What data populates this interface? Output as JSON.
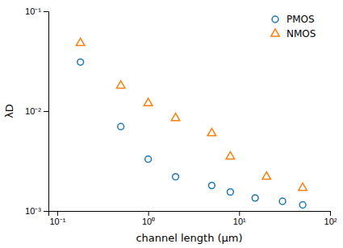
{
  "chart_data": {
    "type": "scatter",
    "xlabel": "channel length (μm)",
    "ylabel": "λD",
    "log": true,
    "xlim": [
      0.08,
      100
    ],
    "ylim": [
      0.001,
      0.1
    ],
    "xticks": [
      {
        "value": 0.1,
        "label": "10⁻¹"
      },
      {
        "value": 1,
        "label": "10⁰"
      },
      {
        "value": 10,
        "label": "10¹"
      },
      {
        "value": 100,
        "label": "10²"
      }
    ],
    "yticks": [
      {
        "value": 0.001,
        "label": "10⁻³"
      },
      {
        "value": 0.01,
        "label": "10⁻²"
      },
      {
        "value": 0.1,
        "label": "10⁻¹"
      }
    ],
    "grid": false,
    "legend": "upper right",
    "series": [
      {
        "name": "PMOS",
        "marker": "circle",
        "x": [
          0.18,
          0.5,
          1.0,
          2.0,
          5.0,
          8.0,
          15.0,
          30.0,
          50.0
        ],
        "values": [
          0.031,
          0.007,
          0.0033,
          0.0022,
          0.0018,
          0.00155,
          0.00135,
          0.00125,
          0.00115
        ]
      },
      {
        "name": "NMOS",
        "marker": "triangle",
        "x": [
          0.18,
          0.5,
          1.0,
          2.0,
          5.0,
          8.0,
          20.0,
          50.0
        ],
        "values": [
          0.048,
          0.018,
          0.012,
          0.0085,
          0.006,
          0.0035,
          0.0022,
          0.0017
        ]
      }
    ]
  }
}
